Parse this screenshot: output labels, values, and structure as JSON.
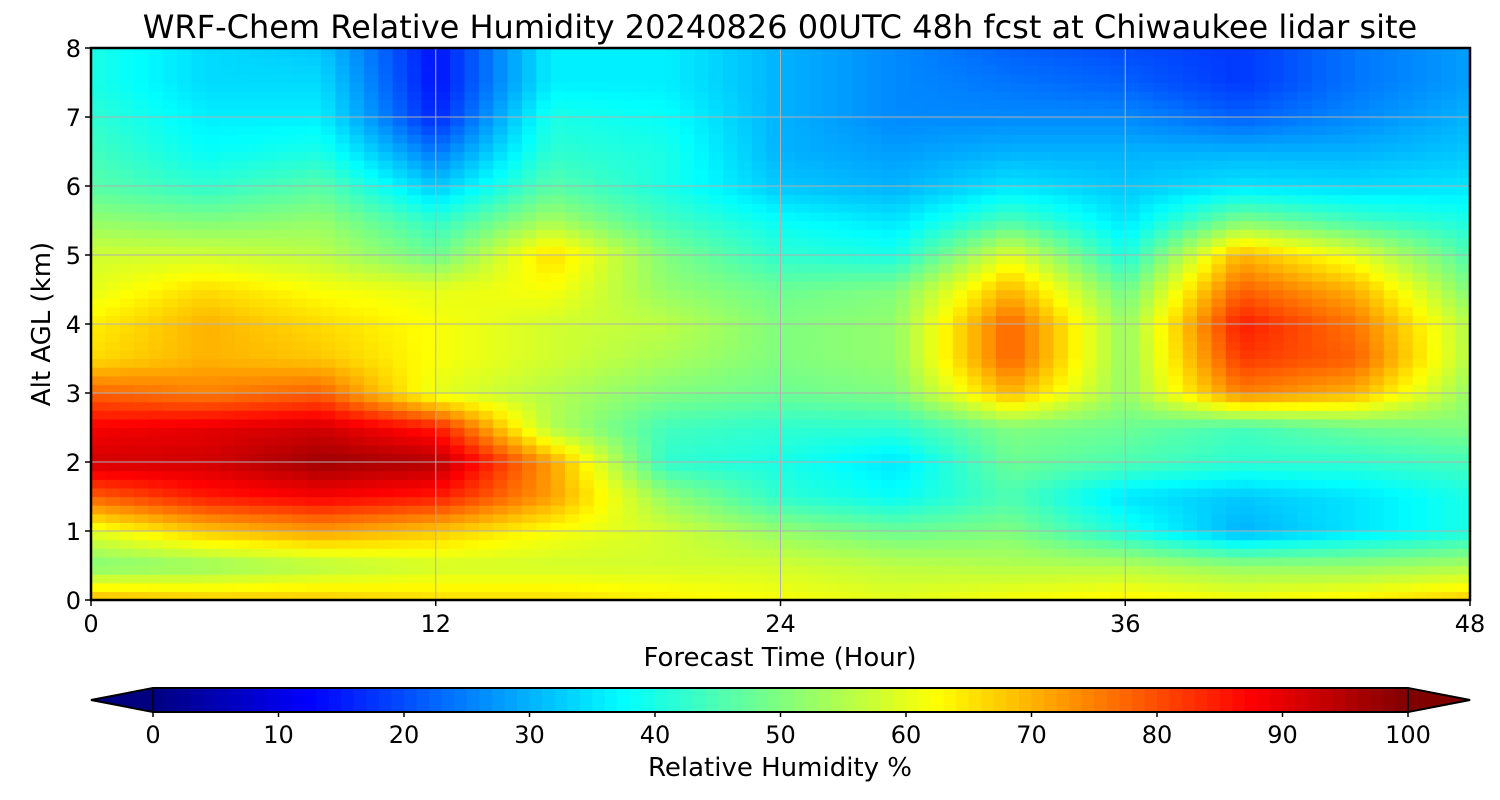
{
  "chart_data": {
    "type": "heatmap",
    "title": "WRF-Chem Relative Humidity 20240826 00UTC 48h fcst at Chiwaukee lidar site",
    "xlabel": "Forecast Time (Hour)",
    "ylabel": "Alt AGL (km)",
    "xlim": [
      0,
      48
    ],
    "ylim": [
      0,
      8
    ],
    "x_ticks": [
      "0",
      "12",
      "24",
      "36",
      "48"
    ],
    "y_ticks": [
      "0",
      "1",
      "2",
      "3",
      "4",
      "5",
      "6",
      "7",
      "8"
    ],
    "grid": true,
    "x": [
      0,
      4,
      8,
      12,
      16,
      20,
      24,
      28,
      32,
      36,
      40,
      44,
      48
    ],
    "y": [
      0,
      0.5,
      1,
      1.5,
      2,
      2.5,
      3,
      3.5,
      4,
      4.5,
      5,
      5.5,
      6,
      6.5,
      7,
      7.5,
      8
    ],
    "z": [
      [
        70,
        68,
        68,
        66,
        66,
        64,
        62,
        60,
        62,
        64,
        62,
        64,
        68
      ],
      [
        50,
        52,
        55,
        58,
        58,
        58,
        58,
        56,
        55,
        55,
        52,
        52,
        54
      ],
      [
        60,
        68,
        72,
        68,
        62,
        58,
        52,
        48,
        50,
        40,
        30,
        35,
        40
      ],
      [
        78,
        85,
        88,
        85,
        72,
        52,
        42,
        38,
        45,
        35,
        32,
        35,
        40
      ],
      [
        92,
        92,
        97,
        95,
        72,
        42,
        40,
        35,
        48,
        45,
        42,
        42,
        44
      ],
      [
        88,
        90,
        92,
        85,
        55,
        44,
        42,
        42,
        50,
        48,
        44,
        48,
        50
      ],
      [
        78,
        75,
        78,
        60,
        55,
        50,
        48,
        50,
        70,
        52,
        75,
        70,
        52
      ],
      [
        66,
        70,
        68,
        62,
        58,
        54,
        50,
        52,
        78,
        52,
        82,
        78,
        55
      ],
      [
        64,
        70,
        66,
        62,
        58,
        56,
        50,
        52,
        78,
        52,
        85,
        76,
        55
      ],
      [
        60,
        66,
        62,
        60,
        62,
        52,
        48,
        50,
        70,
        48,
        78,
        70,
        50
      ],
      [
        58,
        58,
        56,
        48,
        66,
        50,
        42,
        40,
        60,
        40,
        70,
        60,
        45
      ],
      [
        52,
        50,
        52,
        42,
        54,
        44,
        38,
        35,
        45,
        35,
        50,
        44,
        40
      ],
      [
        46,
        42,
        46,
        32,
        46,
        40,
        32,
        30,
        35,
        32,
        35,
        34,
        35
      ],
      [
        44,
        38,
        40,
        24,
        42,
        40,
        30,
        28,
        30,
        30,
        30,
        30,
        32
      ],
      [
        42,
        36,
        36,
        16,
        40,
        38,
        30,
        26,
        26,
        26,
        22,
        26,
        30
      ],
      [
        40,
        34,
        34,
        14,
        36,
        36,
        30,
        26,
        24,
        22,
        18,
        24,
        28
      ],
      [
        40,
        34,
        32,
        14,
        36,
        36,
        30,
        26,
        22,
        20,
        18,
        24,
        28
      ]
    ],
    "colorbar": {
      "label": "Relative Humidity %",
      "ticks": [
        "0",
        "10",
        "20",
        "30",
        "40",
        "50",
        "60",
        "70",
        "80",
        "90",
        "100"
      ],
      "range": [
        0,
        100
      ],
      "extend": "both"
    },
    "colormap": "jet"
  }
}
